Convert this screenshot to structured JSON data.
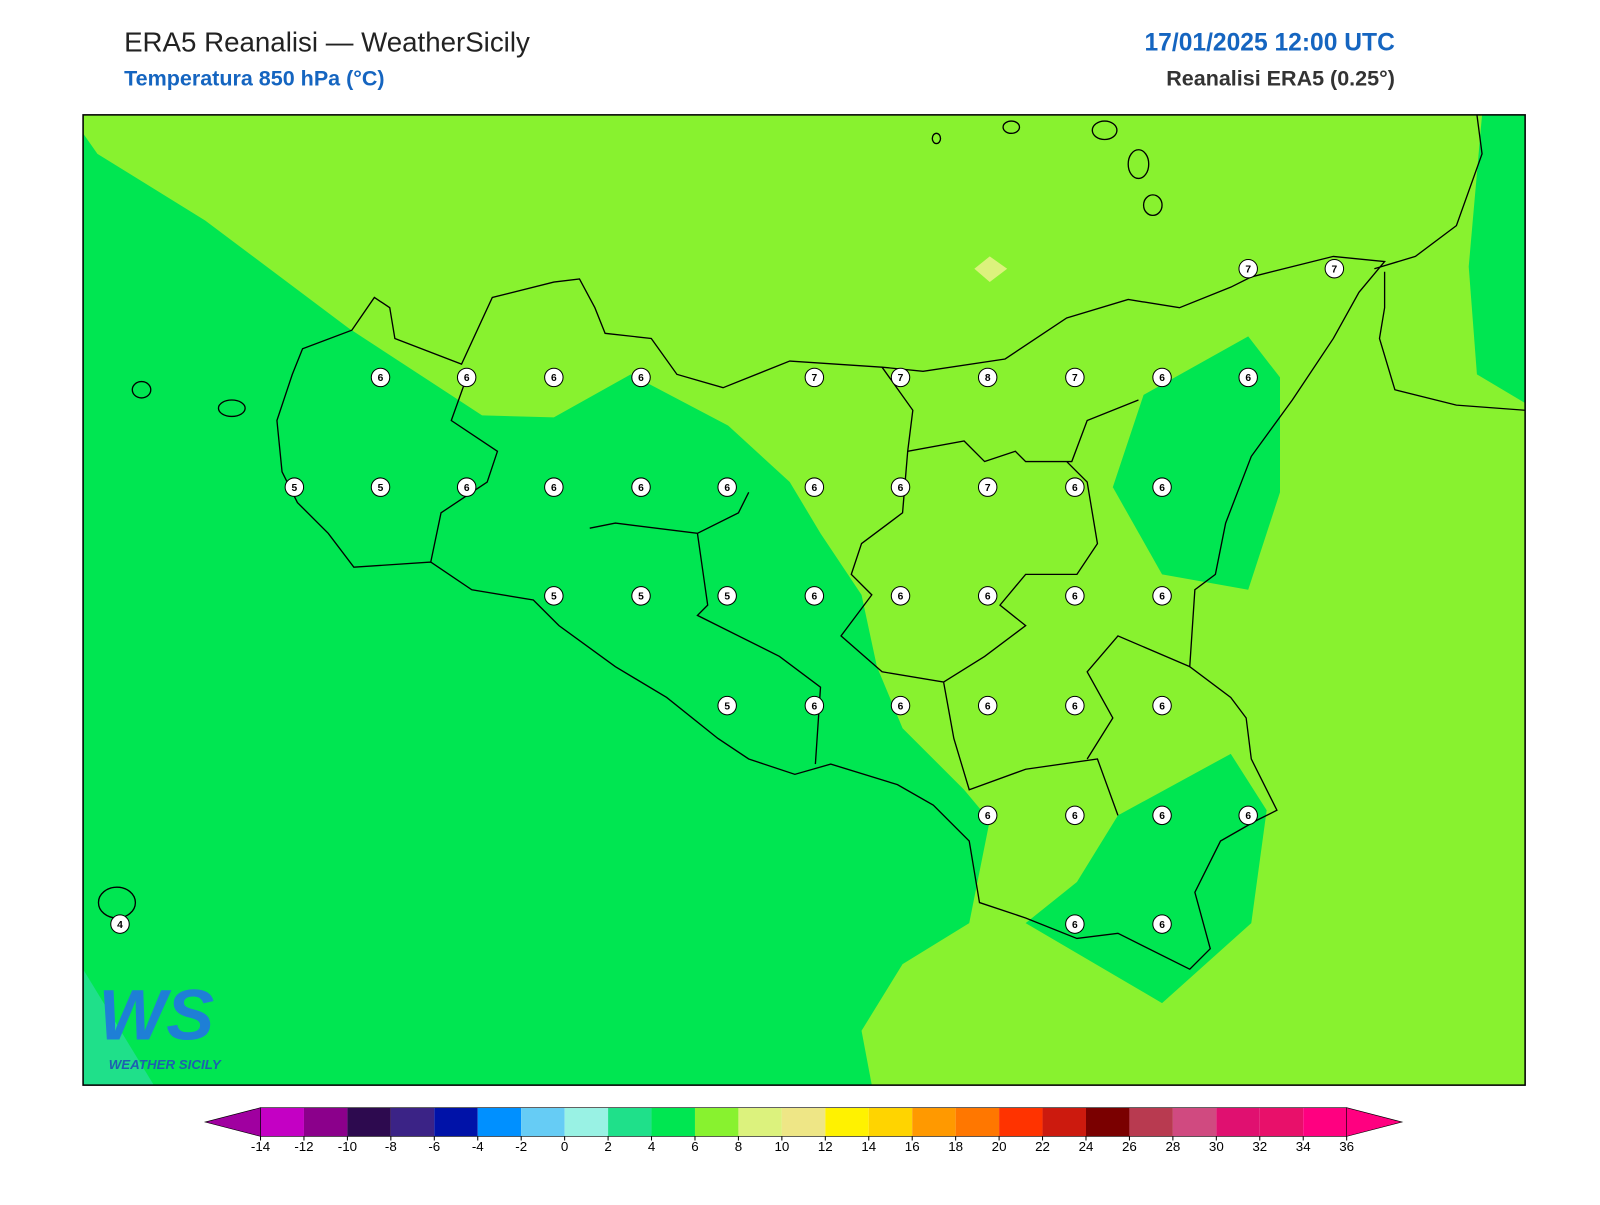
{
  "header": {
    "title": "ERA5 Reanalisi — WeatherSicily",
    "subtitle": "Temperatura 850 hPa (°C)",
    "datetime": "17/01/2025 12:00 UTC",
    "source": "Reanalisi ERA5 (0.25°)"
  },
  "logo": {
    "letters": "WS",
    "text": "WEATHER SICILY"
  },
  "stations": [
    7,
    7,
    6,
    6,
    6,
    6,
    7,
    7,
    8,
    7,
    6,
    6,
    5,
    5,
    6,
    6,
    6,
    6,
    6,
    6,
    7,
    6,
    6,
    5,
    5,
    5,
    6,
    6,
    6,
    6,
    6,
    5,
    6,
    6,
    6,
    6,
    6,
    6,
    6,
    6,
    6,
    4,
    6,
    6
  ],
  "colorbar": {
    "ticks": [
      -14,
      -12,
      -10,
      -8,
      -6,
      -4,
      -2,
      0,
      2,
      4,
      6,
      8,
      10,
      12,
      14,
      16,
      18,
      20,
      22,
      24,
      26,
      28,
      30,
      32,
      34,
      36
    ],
    "colors": [
      "#c400c4",
      "#8b008b",
      "#2d0a4f",
      "#3b2386",
      "#0012a8",
      "#0090ff",
      "#66ccf5",
      "#99f2e4",
      "#1fe08a",
      "#00e651",
      "#88f22f",
      "#dcf27d",
      "#eee686",
      "#fff200",
      "#ffd400",
      "#ff9900",
      "#ff7700",
      "#ff3300",
      "#cc1a0e",
      "#7a0000",
      "#b83a50",
      "#d04a80",
      "#e01070",
      "#e8106a",
      "#ff0080"
    ],
    "under": "#a000a0",
    "over": "#ff0080"
  }
}
